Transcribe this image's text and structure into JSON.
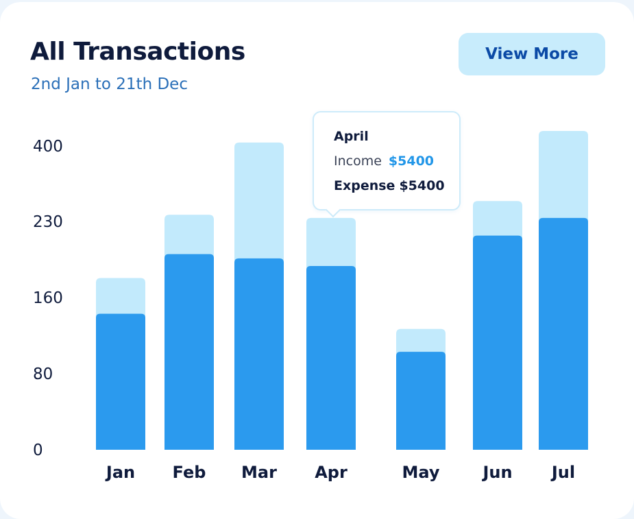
{
  "card": {
    "title": "All Transactions",
    "subtitle": "2nd Jan to 21th Dec",
    "view_more_label": "View More"
  },
  "tooltip": {
    "month": "April",
    "income_label": "Income",
    "income_value": "$5400",
    "expense_label": "Expense",
    "expense_value": "$5400"
  },
  "colors": {
    "income_bar": "#c2eafc",
    "expense_bar": "#2b9aee",
    "accent": "#2196e8"
  },
  "chart_data": {
    "type": "bar",
    "stacked_overlay": true,
    "categories": [
      "Jan",
      "Feb",
      "Mar",
      "Apr",
      "May",
      "Jun",
      "Jul"
    ],
    "y_ticks": [
      "0",
      "80",
      "160",
      "230",
      "400"
    ],
    "series": [
      {
        "key": "total",
        "values": [
          178,
          245,
          408,
          238,
          127,
          276,
          434
        ]
      },
      {
        "key": "expense",
        "values": [
          143,
          200,
          196,
          189,
          103,
          217,
          238
        ]
      }
    ],
    "grid": false,
    "legend": "none"
  }
}
